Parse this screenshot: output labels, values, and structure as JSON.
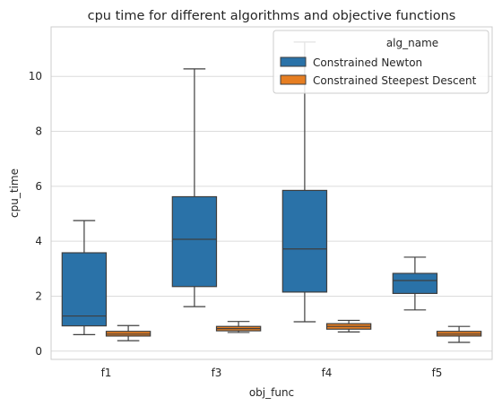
{
  "chart_data": {
    "type": "boxplot",
    "title": "cpu time for different algorithms and objective functions",
    "xlabel": "obj_func",
    "ylabel": "cpu_time",
    "ylim": [
      -0.3,
      11.8
    ],
    "yticks": [
      0,
      2,
      4,
      6,
      8,
      10
    ],
    "grid": true,
    "legend_position": "top-right",
    "legend_title": "alg_name",
    "categories": [
      "f1",
      "f3",
      "f4",
      "f5"
    ],
    "series": [
      {
        "name": "Constrained Newton",
        "color": "#2a72a8",
        "boxes": [
          {
            "whisker_low": 0.6,
            "q1": 0.92,
            "median": 1.28,
            "q3": 3.58,
            "whisker_high": 4.75
          },
          {
            "whisker_low": 1.62,
            "q1": 2.35,
            "median": 4.07,
            "q3": 5.62,
            "whisker_high": 10.27
          },
          {
            "whisker_low": 1.07,
            "q1": 2.15,
            "median": 3.72,
            "q3": 5.85,
            "whisker_high": 11.25
          },
          {
            "whisker_low": 1.5,
            "q1": 2.1,
            "median": 2.57,
            "q3": 2.83,
            "whisker_high": 3.42
          }
        ]
      },
      {
        "name": "Constrained Steepest Descent",
        "color": "#e67e22",
        "boxes": [
          {
            "whisker_low": 0.38,
            "q1": 0.55,
            "median": 0.62,
            "q3": 0.72,
            "whisker_high": 0.93
          },
          {
            "whisker_low": 0.68,
            "q1": 0.74,
            "median": 0.82,
            "q3": 0.9,
            "whisker_high": 1.08
          },
          {
            "whisker_low": 0.7,
            "q1": 0.8,
            "median": 0.9,
            "q3": 1.0,
            "whisker_high": 1.12
          },
          {
            "whisker_low": 0.32,
            "q1": 0.55,
            "median": 0.62,
            "q3": 0.72,
            "whisker_high": 0.9
          }
        ]
      }
    ]
  }
}
